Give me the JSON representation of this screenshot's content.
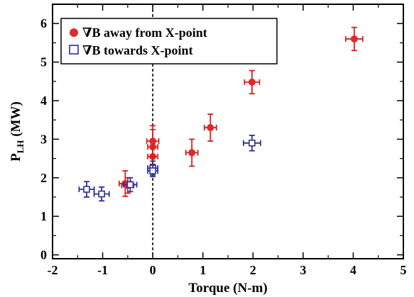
{
  "chart_data": {
    "type": "scatter",
    "xlabel": "Torque (N-m)",
    "ylabel_main": "P",
    "ylabel_sub": "LH",
    "ylabel_unit": " (MW)",
    "xlim": [
      -2,
      5
    ],
    "ylim": [
      -0.1,
      6.5
    ],
    "x_ticks": [
      -2,
      -1,
      0,
      1,
      2,
      3,
      4,
      5
    ],
    "y_ticks": [
      0,
      1,
      2,
      3,
      4,
      5,
      6
    ],
    "x_tick_labels": [
      "-2",
      "-1",
      "0",
      "1",
      "2",
      "3",
      "4",
      "5"
    ],
    "y_tick_labels": [
      "0",
      "1",
      "2",
      "3",
      "4",
      "5",
      "6"
    ],
    "reference_line_x": 0,
    "legend_placement": "top-left",
    "series": [
      {
        "name": "∇B away from X-point",
        "marker": "filled-circle",
        "color": "#e02a2a",
        "error_color": "#d42020",
        "points": [
          {
            "x": -0.55,
            "y": 1.85,
            "xerr": 0.12,
            "yerr": 0.33
          },
          {
            "x": -0.5,
            "y": 1.8,
            "xerr": 0.12,
            "yerr": 0.2
          },
          {
            "x": 0.0,
            "y": 2.55,
            "xerr": 0.1,
            "yerr": 0.25
          },
          {
            "x": 0.0,
            "y": 2.8,
            "xerr": 0.1,
            "yerr": 0.45
          },
          {
            "x": 0.0,
            "y": 2.95,
            "xerr": 0.12,
            "yerr": 0.4
          },
          {
            "x": 0.78,
            "y": 2.65,
            "xerr": 0.12,
            "yerr": 0.35
          },
          {
            "x": 1.15,
            "y": 3.3,
            "xerr": 0.12,
            "yerr": 0.35
          },
          {
            "x": 1.98,
            "y": 4.48,
            "xerr": 0.15,
            "yerr": 0.3
          },
          {
            "x": 4.02,
            "y": 5.6,
            "xerr": 0.17,
            "yerr": 0.3
          }
        ]
      },
      {
        "name": "∇B towards X-point",
        "marker": "open-square",
        "color": "#2e2e9a",
        "error_color": "#2e2e9a",
        "points": [
          {
            "x": -1.32,
            "y": 1.7,
            "xerr": 0.15,
            "yerr": 0.2
          },
          {
            "x": -1.02,
            "y": 1.58,
            "xerr": 0.15,
            "yerr": 0.18
          },
          {
            "x": -0.45,
            "y": 1.82,
            "xerr": 0.13,
            "yerr": 0.18
          },
          {
            "x": 0.0,
            "y": 2.25,
            "xerr": 0.1,
            "yerr": 0.18
          },
          {
            "x": 0.0,
            "y": 2.18,
            "xerr": 0.1,
            "yerr": 0.15
          },
          {
            "x": 1.98,
            "y": 2.9,
            "xerr": 0.17,
            "yerr": 0.2
          }
        ]
      }
    ]
  }
}
